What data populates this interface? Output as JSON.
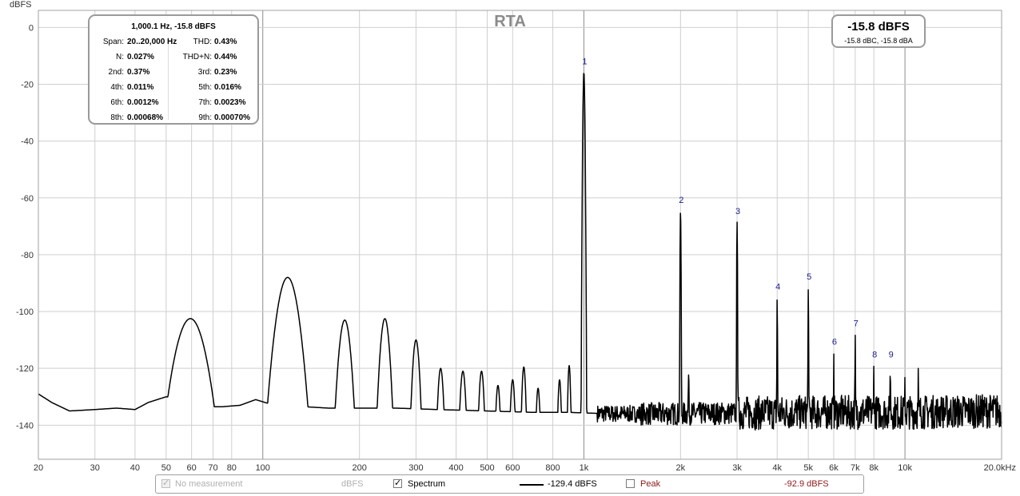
{
  "chart_data": {
    "type": "line",
    "title": "RTA",
    "ylabel": "dBFS",
    "x_scale": "log",
    "xlim": [
      20,
      20000
    ],
    "ylim": [
      -152,
      6
    ],
    "grid": true,
    "x_ticks": [
      {
        "v": 20,
        "label": "20"
      },
      {
        "v": 30,
        "label": "30"
      },
      {
        "v": 40,
        "label": "40"
      },
      {
        "v": 50,
        "label": "50"
      },
      {
        "v": 60,
        "label": "60"
      },
      {
        "v": 70,
        "label": "70"
      },
      {
        "v": 80,
        "label": "80"
      },
      {
        "v": 100,
        "label": "100"
      },
      {
        "v": 200,
        "label": "200"
      },
      {
        "v": 300,
        "label": "300"
      },
      {
        "v": 400,
        "label": "400"
      },
      {
        "v": 500,
        "label": "500"
      },
      {
        "v": 600,
        "label": "600"
      },
      {
        "v": 800,
        "label": "800"
      },
      {
        "v": 1000,
        "label": "1k"
      },
      {
        "v": 2000,
        "label": "2k"
      },
      {
        "v": 3000,
        "label": "3k"
      },
      {
        "v": 4000,
        "label": "4k"
      },
      {
        "v": 5000,
        "label": "5k"
      },
      {
        "v": 6000,
        "label": "6k"
      },
      {
        "v": 7000,
        "label": "7k"
      },
      {
        "v": 8000,
        "label": "8k"
      },
      {
        "v": 10000,
        "label": "10k"
      },
      {
        "v": 20000,
        "label": "20.0kHz"
      }
    ],
    "y_ticks": [
      0,
      -20,
      -40,
      -60,
      -80,
      -100,
      -120,
      -140
    ],
    "harmonic_markers": [
      {
        "label": "1",
        "freq": 1000,
        "db": -15.8
      },
      {
        "label": "2",
        "freq": 2000,
        "db": -64.5
      },
      {
        "label": "3",
        "freq": 3000,
        "db": -68.5
      },
      {
        "label": "4",
        "freq": 4000,
        "db": -95
      },
      {
        "label": "5",
        "freq": 5000,
        "db": -91.5
      },
      {
        "label": "6",
        "freq": 6000,
        "db": -114.5
      },
      {
        "label": "7",
        "freq": 7000,
        "db": -108
      },
      {
        "label": "8",
        "freq": 8000,
        "db": -119
      },
      {
        "label": "9",
        "freq": 9000,
        "db": -119
      }
    ],
    "series": [
      {
        "name": "Spectrum",
        "color": "#000000",
        "baseline": [
          [
            20,
            -129
          ],
          [
            22,
            -132
          ],
          [
            25,
            -135
          ],
          [
            30,
            -134.5
          ],
          [
            35,
            -134
          ],
          [
            40,
            -134.5
          ],
          [
            44,
            -132
          ],
          [
            50,
            -130
          ],
          [
            55,
            -130.5
          ],
          [
            65,
            -133.5
          ],
          [
            75,
            -133.5
          ],
          [
            85,
            -133
          ],
          [
            95,
            -131
          ],
          [
            105,
            -132.5
          ],
          [
            115,
            -133.5
          ],
          [
            135,
            -133.5
          ],
          [
            160,
            -134
          ],
          [
            200,
            -134
          ],
          [
            260,
            -134
          ],
          [
            350,
            -134.5
          ],
          [
            500,
            -135
          ],
          [
            700,
            -135.5
          ],
          [
            900,
            -135.5
          ],
          [
            1200,
            -136
          ],
          [
            2000,
            -136
          ],
          [
            5000,
            -135.5
          ],
          [
            10000,
            -135.5
          ],
          [
            20000,
            -135
          ]
        ],
        "peaks": [
          [
            59.5,
            -102.5,
            0.05
          ],
          [
            119.5,
            -88,
            0.035
          ],
          [
            180,
            -103,
            0.02
          ],
          [
            240,
            -102.5,
            0.016
          ],
          [
            300,
            -110,
            0.012
          ],
          [
            358,
            -120,
            0.01
          ],
          [
            420,
            -121,
            0.01
          ],
          [
            480,
            -121,
            0.009
          ],
          [
            540,
            -126,
            0.008
          ],
          [
            600,
            -124,
            0.008
          ],
          [
            650,
            -119.5,
            0.007
          ],
          [
            720,
            -127,
            0.007
          ],
          [
            840,
            -124,
            0.006
          ],
          [
            900,
            -119,
            0.005
          ],
          [
            1000,
            -15.8,
            0.003
          ],
          [
            2000,
            -64.5,
            0.0015
          ],
          [
            2120,
            -122,
            0.002
          ],
          [
            3000,
            -68.5,
            0.0012
          ],
          [
            4000,
            -95,
            0.001
          ],
          [
            5000,
            -91.5,
            0.001
          ],
          [
            6000,
            -114.5,
            0.001
          ],
          [
            7000,
            -108,
            0.001
          ],
          [
            8000,
            -119,
            0.001
          ],
          [
            9000,
            -119,
            0.001
          ],
          [
            10000,
            -123,
            0.001
          ],
          [
            11000,
            -120,
            0.001
          ],
          [
            13000,
            -127,
            0.001
          ]
        ]
      }
    ]
  },
  "info_box": {
    "title": "1,000.1 Hz, -15.8 dBFS",
    "rows": [
      {
        "l_label": "Span:",
        "l_value": "20..20,000 Hz",
        "r_label": "THD:",
        "r_value": "0.43%"
      },
      {
        "l_label": "N:",
        "l_value": "0.027%",
        "r_label": "THD+N:",
        "r_value": "0.44%"
      },
      {
        "l_label": "2nd:",
        "l_value": "0.37%",
        "r_label": "3rd:",
        "r_value": "0.23%"
      },
      {
        "l_label": "4th:",
        "l_value": "0.011%",
        "r_label": "5th:",
        "r_value": "0.016%"
      },
      {
        "l_label": "6th:",
        "l_value": "0.0012%",
        "r_label": "7th:",
        "r_value": "0.0023%"
      },
      {
        "l_label": "8th:",
        "l_value": "0.00068%",
        "r_label": "9th:",
        "r_value": "0.00070%"
      }
    ]
  },
  "level_box": {
    "main": "-15.8 dBFS",
    "sub": "-15.8 dBC, -15.8 dBA"
  },
  "legend": {
    "no_measurement_label": "No measurement",
    "no_measurement_checked": true,
    "no_measurement_unit": "dBFS",
    "spectrum_label": "Spectrum",
    "spectrum_checked": true,
    "spectrum_value": "-129.4 dBFS",
    "peak_label": "Peak",
    "peak_checked": false,
    "peak_value": "-92.9 dBFS",
    "peak_color": "#8b1a1a",
    "disabled_color": "#b0b0b0"
  }
}
